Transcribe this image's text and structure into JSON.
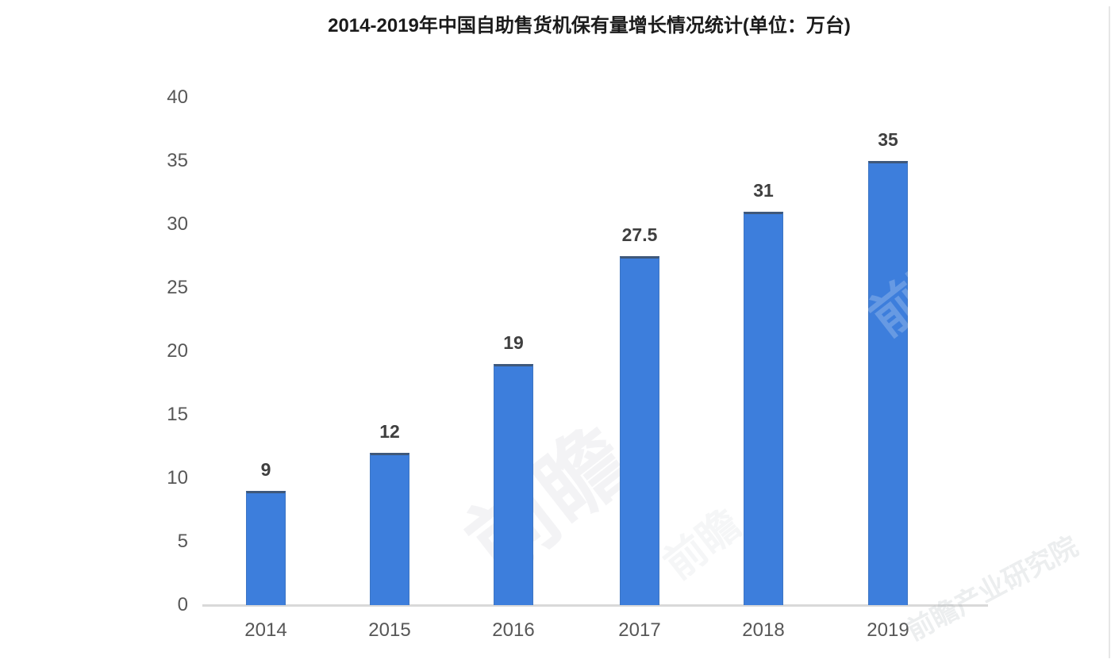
{
  "page": {
    "background": "#ffffff"
  },
  "chart_data": {
    "type": "bar",
    "title": "2014-2019年中国自助售货机保有量增长情况统计(单位：万台)",
    "categories": [
      "2014",
      "2015",
      "2016",
      "2017",
      "2018",
      "2019"
    ],
    "values": [
      9,
      12,
      19,
      27.5,
      31,
      35
    ],
    "xlabel": "",
    "ylabel": "",
    "ylim": [
      0,
      40
    ],
    "yticks": [
      0,
      5,
      10,
      15,
      20,
      25,
      30,
      35,
      40
    ],
    "grid": false,
    "legend": false,
    "data_labels_shown": true,
    "colors": {
      "bar": "#3D7EDC",
      "bar_top_edge": "#404A55",
      "axis_line": "#d9d9d9",
      "tick_label": "#575757",
      "value_label": "#3f3f3f",
      "title": "#1b1b1b"
    }
  },
  "watermark": {
    "text": "前瞻",
    "full_text": "前瞻产业研究院"
  }
}
